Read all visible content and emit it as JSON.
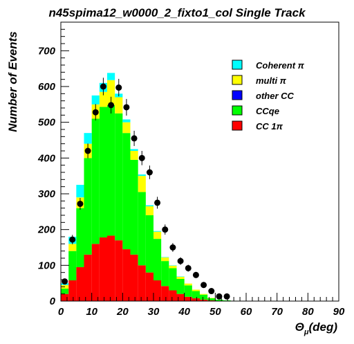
{
  "chart_data": {
    "type": "bar",
    "title": "n45spima12_w0000_2_fixto1_col Single Track",
    "ylabel": "Number of Events",
    "xlabel_main": "Θ",
    "xlabel_sub": "μ",
    "xlabel_tail": "(deg)",
    "xlim": [
      0,
      90
    ],
    "ylim": [
      0,
      780
    ],
    "x_ticks": [
      0,
      10,
      20,
      30,
      40,
      50,
      60,
      70,
      80,
      90
    ],
    "y_ticks": [
      0,
      100,
      200,
      300,
      400,
      500,
      600,
      700
    ],
    "bin_width": 2.5,
    "bin_low_edges": [
      0,
      2.5,
      5,
      7.5,
      10,
      12.5,
      15,
      17.5,
      20,
      22.5,
      25,
      27.5,
      30,
      32.5,
      35,
      37.5,
      40,
      42.5,
      45,
      47.5,
      50,
      52.5,
      55,
      57.5
    ],
    "stack_order_bottom_to_top": [
      "CC 1π",
      "CCqe",
      "other CC",
      "multi π",
      "Coherent π"
    ],
    "series": [
      {
        "name": "CC 1π",
        "color": "#ff0000",
        "values": [
          20,
          58,
          95,
          130,
          160,
          178,
          183,
          170,
          145,
          130,
          100,
          80,
          58,
          42,
          30,
          20,
          12,
          8,
          4,
          2,
          1,
          0,
          0,
          0
        ]
      },
      {
        "name": "CCqe",
        "color": "#00ff00",
        "values": [
          15,
          82,
          165,
          270,
          350,
          365,
          365,
          355,
          325,
          265,
          205,
          160,
          116,
          70,
          62,
          42,
          32,
          20,
          14,
          6,
          3,
          2,
          1,
          0
        ]
      },
      {
        "name": "other CC",
        "color": "#0000ff",
        "values": [
          0,
          0,
          0,
          0,
          0,
          0,
          0,
          0,
          0,
          0,
          0,
          0,
          0,
          0,
          0,
          0,
          0,
          0,
          0,
          0,
          0,
          0,
          0,
          0
        ]
      },
      {
        "name": "multi π",
        "color": "#ffff00",
        "values": [
          10,
          20,
          30,
          40,
          40,
          42,
          70,
          45,
          30,
          25,
          45,
          25,
          20,
          10,
          7,
          6,
          5,
          4,
          2,
          1,
          0,
          0,
          0,
          0
        ]
      },
      {
        "name": "Coherent π",
        "color": "#00ffff",
        "values": [
          5,
          20,
          35,
          30,
          25,
          25,
          20,
          10,
          8,
          5,
          4,
          3,
          2,
          1,
          1,
          1,
          0,
          0,
          0,
          0,
          0,
          0,
          0,
          0
        ]
      }
    ],
    "data_points": {
      "x": [
        1.25,
        3.75,
        6.25,
        8.75,
        11.25,
        13.75,
        16.25,
        18.75,
        21.25,
        23.75,
        26.25,
        28.75,
        31.25,
        33.75,
        36.25,
        38.75,
        41.25,
        43.75,
        46.25,
        48.75,
        51.25,
        53.75
      ],
      "y": [
        55,
        172,
        272,
        420,
        528,
        600,
        548,
        597,
        542,
        455,
        400,
        360,
        275,
        200,
        150,
        112,
        92,
        73,
        45,
        28,
        13,
        13
      ]
    },
    "legend_position": "top-right",
    "legend_labels": [
      "Coherent π",
      "multi π",
      "other CC",
      "CCqe",
      "CC 1π"
    ]
  }
}
